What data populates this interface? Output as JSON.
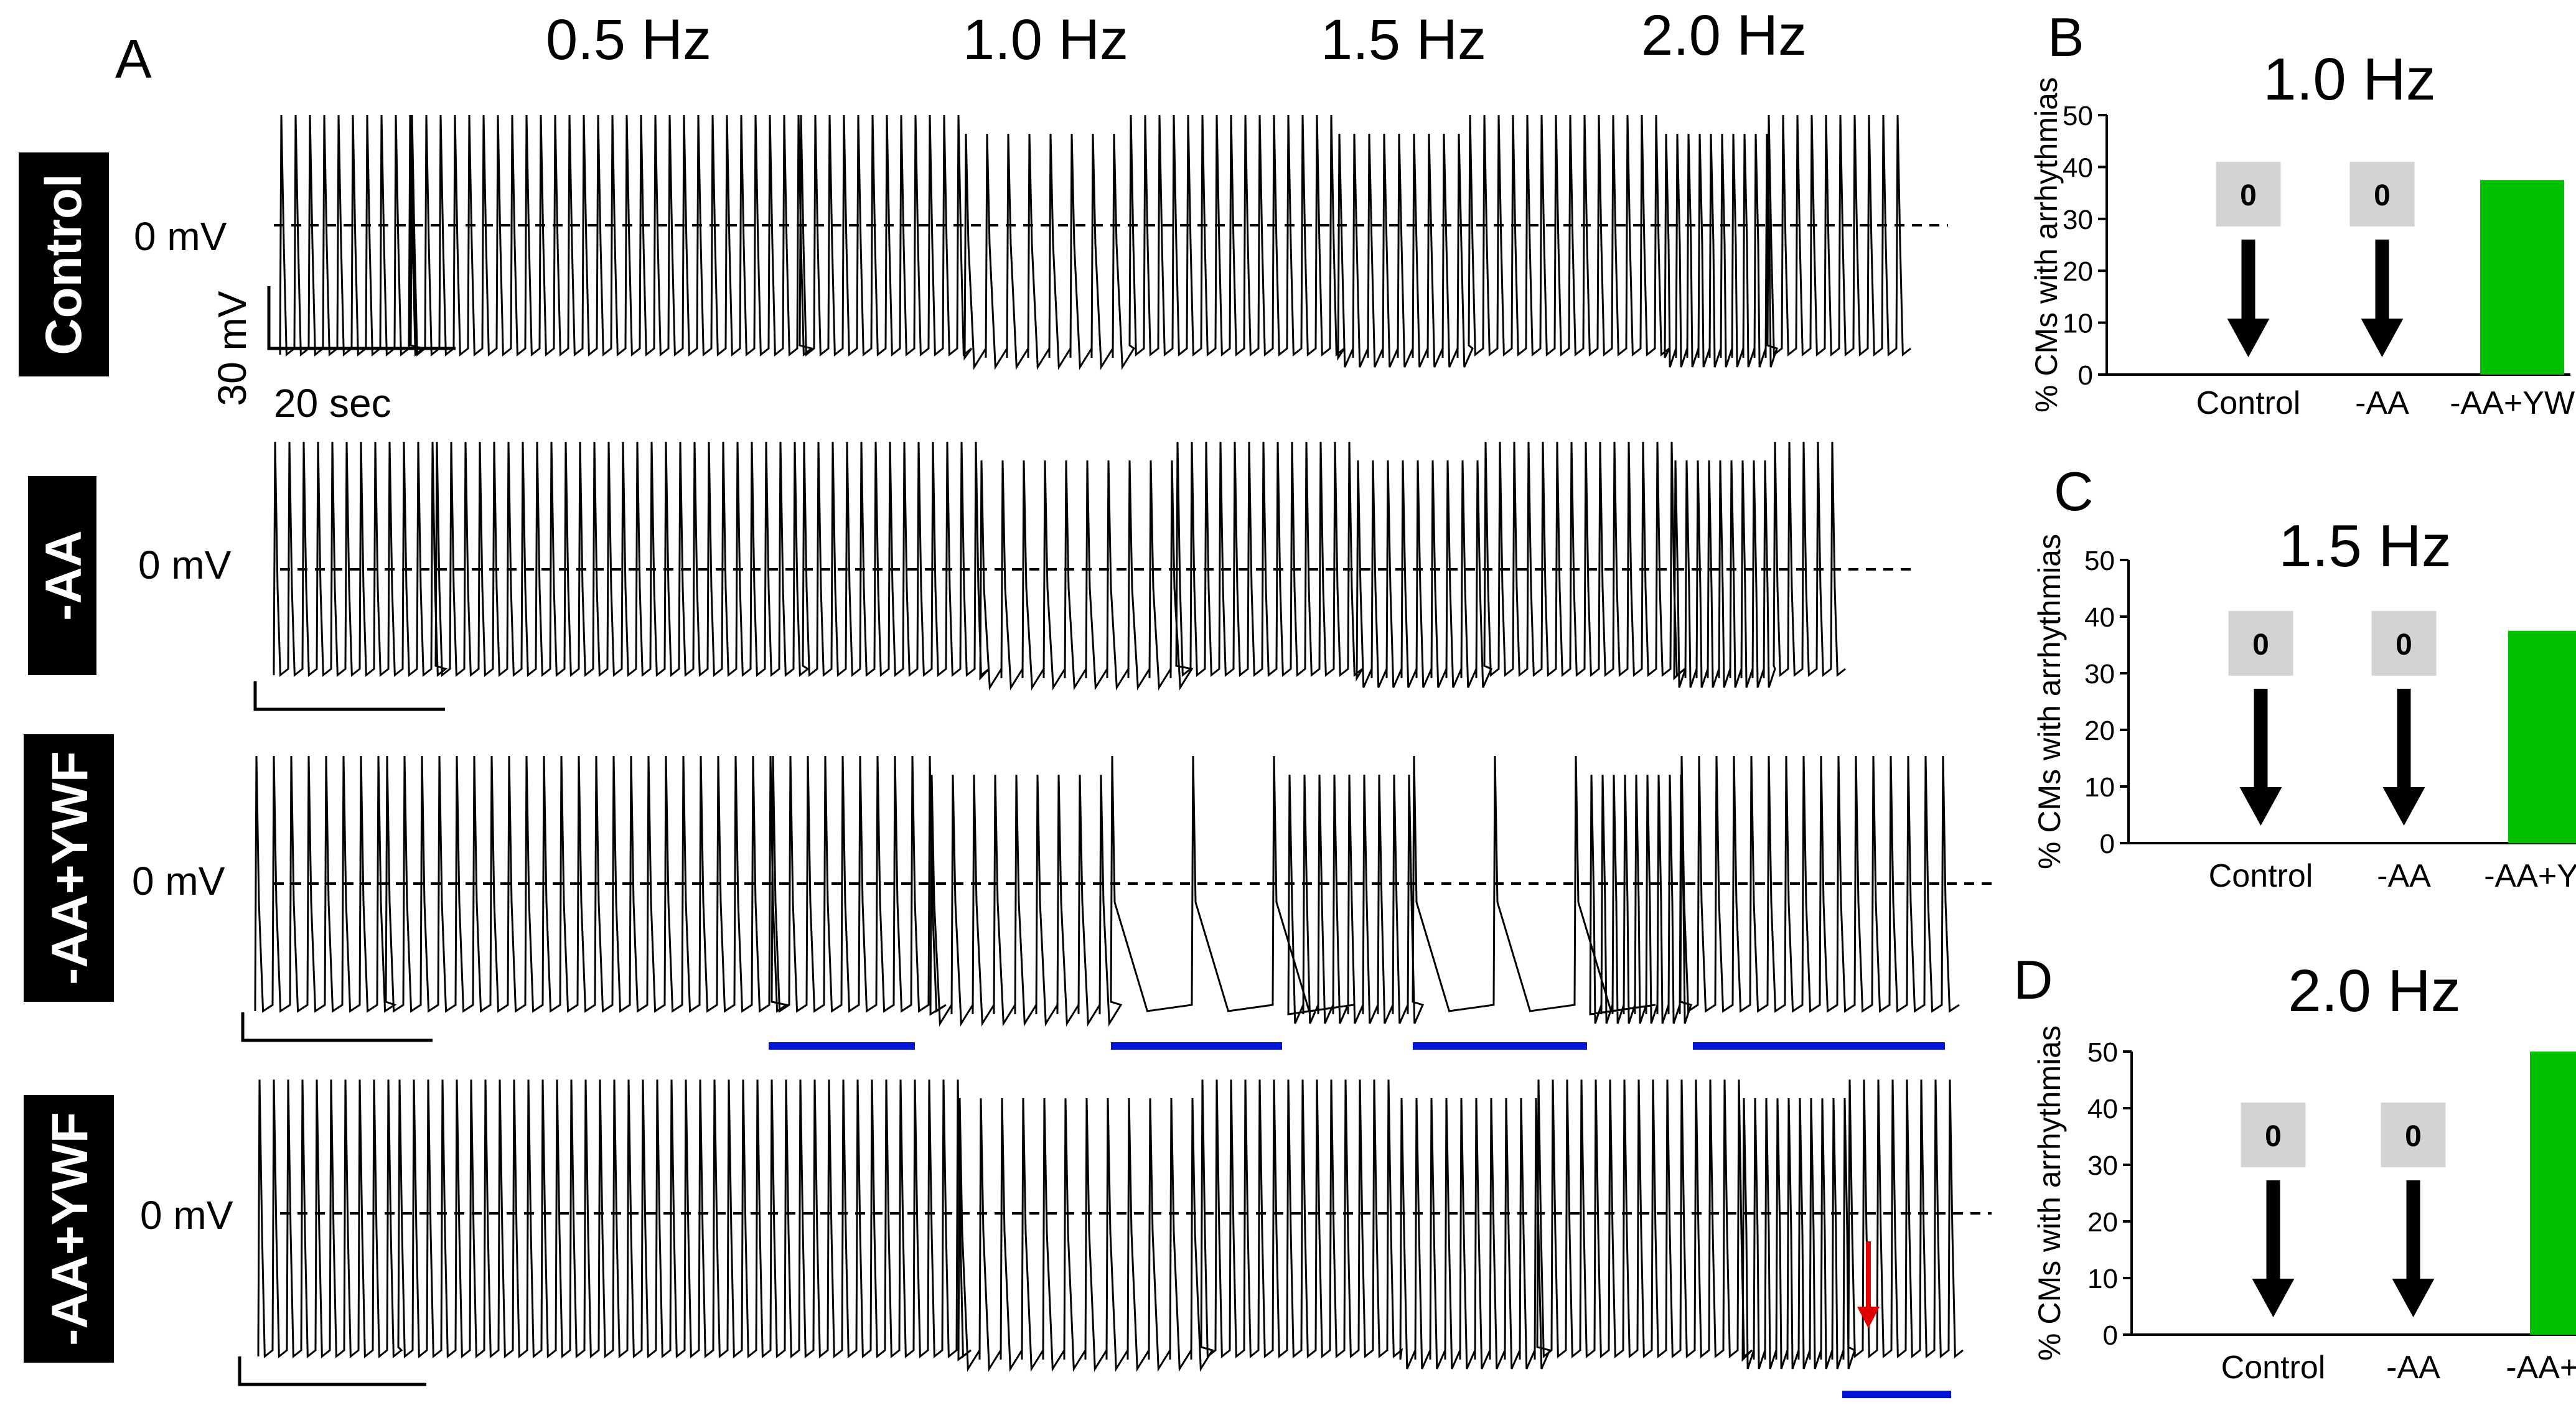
{
  "chart_data": [
    {
      "panel": "A",
      "type": "line",
      "frequency_labels": [
        "0.5 Hz",
        "1.0 Hz",
        "1.5 Hz",
        "2.0 Hz"
      ],
      "zero_line_label": "0 mV",
      "scale_bar": {
        "voltage": "30 mV",
        "time": "20 sec"
      },
      "series": [
        {
          "name": "Control",
          "rates_hz": [
            0.5,
            1.0,
            1.5,
            2.0
          ],
          "arrhythmia_marks": []
        },
        {
          "name": "-AA",
          "rates_hz": [
            0.5,
            1.0,
            1.5,
            2.0
          ],
          "arrhythmia_marks": []
        },
        {
          "name": "-AA+YWF",
          "rates_hz": [
            0.5,
            1.0,
            1.5,
            2.0
          ],
          "arrhythmia_marks": [
            "after 0.5 Hz",
            "after 1.0 Hz",
            "after 1.5 Hz",
            "after 2.0 Hz"
          ]
        },
        {
          "name": "-AA+YWF",
          "rates_hz": [
            0.5,
            1.0,
            1.5,
            2.0
          ],
          "arrhythmia_marks": [
            "after 2.0 Hz (red arrow)"
          ]
        }
      ]
    },
    {
      "panel": "B",
      "type": "bar",
      "title": "1.0 Hz",
      "ylabel": "% CMs with arrhythmias",
      "categories": [
        "Control",
        "-AA",
        "-AA+YWF"
      ],
      "values": [
        0,
        0,
        37.5
      ],
      "zero_labels": [
        "0",
        "0"
      ],
      "ylim": [
        0,
        50
      ],
      "yticks": [
        0,
        10,
        20,
        30,
        40,
        50
      ],
      "color": "#00c000"
    },
    {
      "panel": "C",
      "type": "bar",
      "title": "1.5 Hz",
      "ylabel": "% CMs with arrhythmias",
      "categories": [
        "Control",
        "-AA",
        "-AA+YWF"
      ],
      "values": [
        0,
        0,
        37.5
      ],
      "zero_labels": [
        "0",
        "0"
      ],
      "ylim": [
        0,
        50
      ],
      "yticks": [
        0,
        10,
        20,
        30,
        40,
        50
      ],
      "color": "#00c000"
    },
    {
      "panel": "D",
      "type": "bar",
      "title": "2.0 Hz",
      "ylabel": "% CMs with arrhythmias",
      "categories": [
        "Control",
        "-AA",
        "-AA+YWF"
      ],
      "values": [
        0,
        0,
        50
      ],
      "zero_labels": [
        "0",
        "0"
      ],
      "ylim": [
        0,
        50
      ],
      "yticks": [
        0,
        10,
        20,
        30,
        40,
        50
      ],
      "color": "#00c000"
    }
  ],
  "colors": {
    "trace": "#000000",
    "gray": "#808080",
    "bar": "#00c000",
    "blue_bar": "#0015d8",
    "red_arrow": "#e00000",
    "zero_box": "#d3d3d3"
  }
}
